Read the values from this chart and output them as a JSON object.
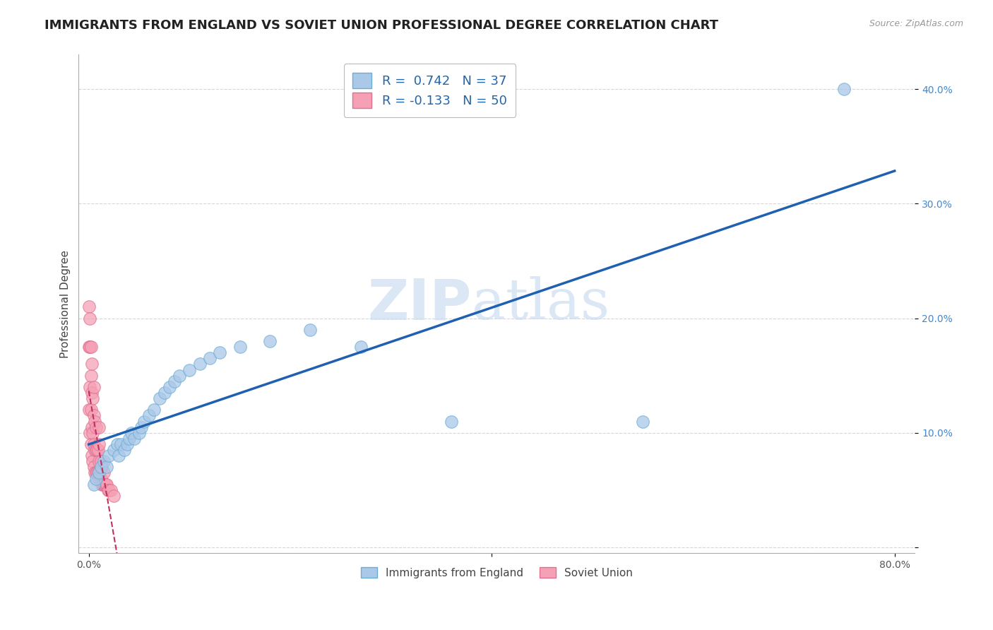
{
  "title": "IMMIGRANTS FROM ENGLAND VS SOVIET UNION PROFESSIONAL DEGREE CORRELATION CHART",
  "source": "Source: ZipAtlas.com",
  "ylabel": "Professional Degree",
  "xlim": [
    -0.01,
    0.82
  ],
  "ylim": [
    -0.005,
    0.43
  ],
  "yticks": [
    0.0,
    0.1,
    0.2,
    0.3,
    0.4
  ],
  "yticklabels": [
    "",
    "10.0%",
    "20.0%",
    "30.0%",
    "40.0%"
  ],
  "legend_r1": "R =  0.742   N = 37",
  "legend_r2": "R = -0.133   N = 50",
  "england_color": "#aac8e8",
  "england_edge": "#6aaed6",
  "soviet_color": "#f5a0b5",
  "soviet_edge": "#e07090",
  "trend_england_color": "#2060b0",
  "trend_soviet_color": "#c03060",
  "watermark_zip": "ZIP",
  "watermark_atlas": "atlas",
  "background_color": "#ffffff",
  "grid_color": "#cccccc",
  "title_fontsize": 13,
  "axis_label_fontsize": 11,
  "tick_fontsize": 10,
  "england_x": [
    0.005,
    0.007,
    0.01,
    0.012,
    0.015,
    0.018,
    0.02,
    0.025,
    0.028,
    0.03,
    0.032,
    0.035,
    0.038,
    0.04,
    0.042,
    0.045,
    0.05,
    0.052,
    0.055,
    0.06,
    0.065,
    0.07,
    0.075,
    0.08,
    0.085,
    0.09,
    0.1,
    0.11,
    0.12,
    0.13,
    0.15,
    0.18,
    0.22,
    0.27,
    0.36,
    0.55,
    0.75
  ],
  "england_y": [
    0.055,
    0.06,
    0.065,
    0.07,
    0.075,
    0.07,
    0.08,
    0.085,
    0.09,
    0.08,
    0.09,
    0.085,
    0.09,
    0.095,
    0.1,
    0.095,
    0.1,
    0.105,
    0.11,
    0.115,
    0.12,
    0.13,
    0.135,
    0.14,
    0.145,
    0.15,
    0.155,
    0.16,
    0.165,
    0.17,
    0.175,
    0.18,
    0.19,
    0.175,
    0.11,
    0.11,
    0.4
  ],
  "soviet_x": [
    0.0,
    0.0,
    0.0,
    0.001,
    0.001,
    0.001,
    0.001,
    0.002,
    0.002,
    0.002,
    0.002,
    0.003,
    0.003,
    0.003,
    0.003,
    0.004,
    0.004,
    0.004,
    0.005,
    0.005,
    0.005,
    0.005,
    0.006,
    0.006,
    0.006,
    0.007,
    0.007,
    0.007,
    0.008,
    0.008,
    0.009,
    0.009,
    0.01,
    0.01,
    0.01,
    0.01,
    0.012,
    0.012,
    0.013,
    0.013,
    0.014,
    0.015,
    0.015,
    0.016,
    0.017,
    0.018,
    0.019,
    0.02,
    0.022,
    0.025
  ],
  "soviet_y": [
    0.12,
    0.175,
    0.21,
    0.1,
    0.14,
    0.175,
    0.2,
    0.09,
    0.12,
    0.15,
    0.175,
    0.08,
    0.105,
    0.135,
    0.16,
    0.075,
    0.1,
    0.13,
    0.07,
    0.09,
    0.115,
    0.14,
    0.065,
    0.085,
    0.11,
    0.065,
    0.085,
    0.105,
    0.065,
    0.085,
    0.065,
    0.085,
    0.06,
    0.075,
    0.09,
    0.105,
    0.06,
    0.075,
    0.055,
    0.07,
    0.055,
    0.055,
    0.065,
    0.055,
    0.055,
    0.055,
    0.05,
    0.05,
    0.05,
    0.045
  ]
}
